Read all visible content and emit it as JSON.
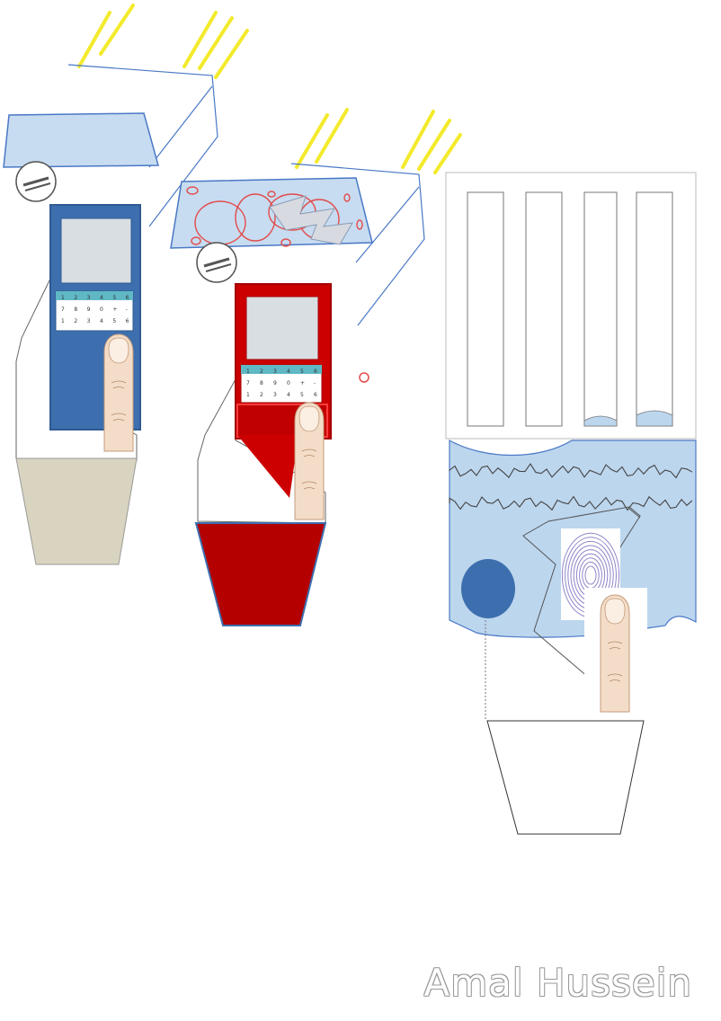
{
  "author_signature": "Amal Hussein",
  "palette": {
    "light_blue": "#bcd6ee",
    "device_blue": "#3d6fae",
    "device_red": "#cc0000",
    "dark_red": "#b50000",
    "khaki": "#d9d4bf",
    "ray_yellow": "#f3ea2b",
    "line_blue": "#4a78c6",
    "oval_red": "#e34b4b",
    "fingerprint": "#8f86c8",
    "skin": "#f2dcc8"
  },
  "keypad_rows": [
    [
      "1",
      "2",
      "3",
      "4",
      "5",
      "6"
    ],
    [
      "7",
      "8",
      "9",
      "0",
      "+",
      "-"
    ],
    [
      "1",
      "2",
      "3",
      "4",
      "5",
      "6"
    ]
  ],
  "scrollwork_rows": 2
}
